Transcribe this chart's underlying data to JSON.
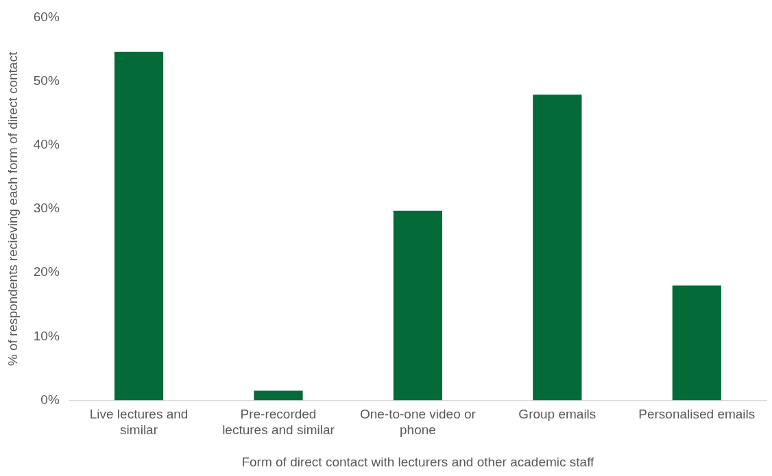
{
  "chart_data": {
    "type": "bar",
    "xlabel": "Form of direct contact with lecturers and other academic staff",
    "ylabel": "% of respondents recieving each form of direct contact",
    "categories": [
      "Live lectures and similar",
      "Pre-recorded lectures and similar",
      "One-to-one video or phone",
      "Group emails",
      "Personalised emails"
    ],
    "values": [
      54.6,
      1.5,
      29.7,
      47.9,
      18.0
    ],
    "color": "#036a38",
    "ylim": [
      0,
      60
    ],
    "yticks": [
      {
        "value": 0,
        "label": "0%"
      },
      {
        "value": 10,
        "label": "10%"
      },
      {
        "value": 20,
        "label": "20%"
      },
      {
        "value": 30,
        "label": "30%"
      },
      {
        "value": 40,
        "label": "40%"
      },
      {
        "value": 50,
        "label": "50%"
      },
      {
        "value": 60,
        "label": "60%"
      }
    ],
    "grid": false,
    "legend": false
  }
}
